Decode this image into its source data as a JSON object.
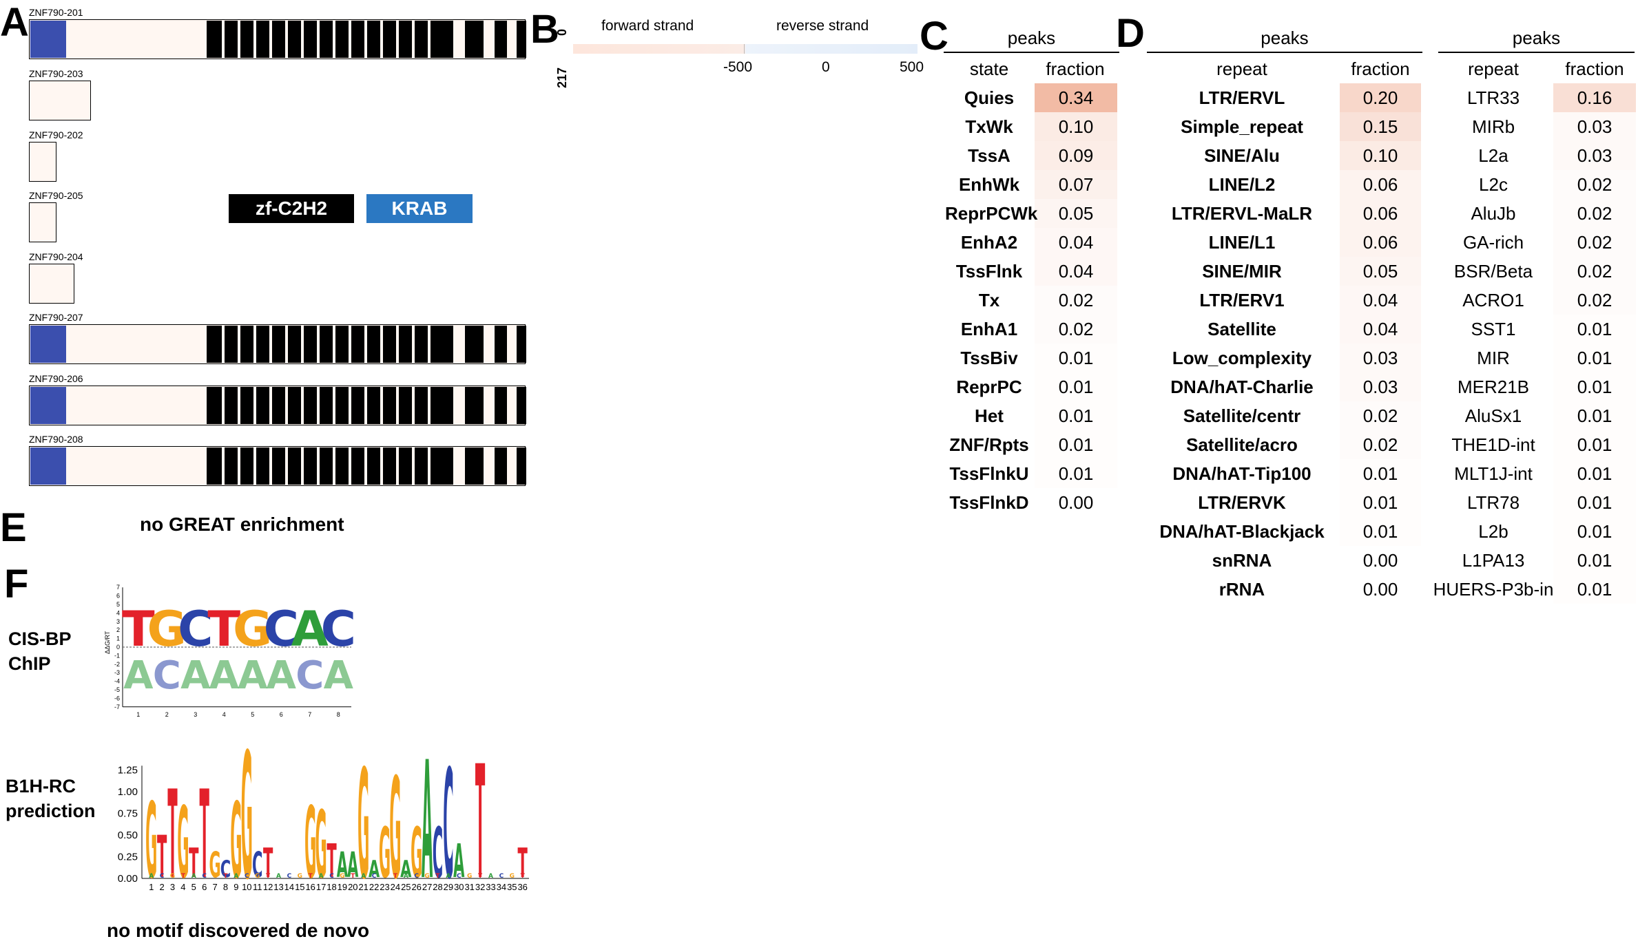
{
  "panels": {
    "A": "A",
    "B": "B",
    "C": "C",
    "D": "D",
    "E": "E",
    "F": "F"
  },
  "panel_a": {
    "transcripts": [
      {
        "name": "ZNF790-201",
        "krab": true,
        "zf": true
      },
      {
        "name": "ZNF790-203",
        "krab": false,
        "zf": false
      },
      {
        "name": "ZNF790-202",
        "krab": false,
        "zf": false
      },
      {
        "name": "ZNF790-205",
        "krab": false,
        "zf": false
      },
      {
        "name": "ZNF790-204",
        "krab": false,
        "zf": false
      },
      {
        "name": "ZNF790-207",
        "krab": true,
        "zf": true
      },
      {
        "name": "ZNF790-206",
        "krab": true,
        "zf": true
      },
      {
        "name": "ZNF790-208",
        "krab": true,
        "zf": true
      }
    ],
    "legend": {
      "zf_label": "zf-C2H2",
      "zf_color": "#000000",
      "krab_label": "KRAB",
      "krab_color": "#2b78c2"
    },
    "domain_colors": {
      "krab": "#3b4fae",
      "zf": "#000000",
      "track": "#fff7f2"
    }
  },
  "panel_b": {
    "forward_label": "forward strand",
    "reverse_label": "reverse strand",
    "y_top": "0",
    "y_bottom": "217",
    "x_ticks": [
      "-500",
      "0",
      "500"
    ]
  },
  "panel_c": {
    "header": "peaks",
    "col_state": "state",
    "col_fraction": "fraction",
    "rows": [
      {
        "state": "Quies",
        "fraction": "0.34"
      },
      {
        "state": "TxWk",
        "fraction": "0.10"
      },
      {
        "state": "TssA",
        "fraction": "0.09"
      },
      {
        "state": "EnhWk",
        "fraction": "0.07"
      },
      {
        "state": "ReprPCWk",
        "fraction": "0.05"
      },
      {
        "state": "EnhA2",
        "fraction": "0.04"
      },
      {
        "state": "TssFlnk",
        "fraction": "0.04"
      },
      {
        "state": "Tx",
        "fraction": "0.02"
      },
      {
        "state": "EnhA1",
        "fraction": "0.02"
      },
      {
        "state": "TssBiv",
        "fraction": "0.01"
      },
      {
        "state": "ReprPC",
        "fraction": "0.01"
      },
      {
        "state": "Het",
        "fraction": "0.01"
      },
      {
        "state": "ZNF/Rpts",
        "fraction": "0.01"
      },
      {
        "state": "TssFlnkU",
        "fraction": "0.01"
      },
      {
        "state": "TssFlnkD",
        "fraction": "0.00"
      }
    ]
  },
  "panel_d_left": {
    "header": "peaks",
    "col_repeat": "repeat",
    "col_fraction": "fraction",
    "rows": [
      {
        "repeat": "LTR/ERVL",
        "fraction": "0.20"
      },
      {
        "repeat": "Simple_repeat",
        "fraction": "0.15"
      },
      {
        "repeat": "SINE/Alu",
        "fraction": "0.10"
      },
      {
        "repeat": "LINE/L2",
        "fraction": "0.06"
      },
      {
        "repeat": "LTR/ERVL-MaLR",
        "fraction": "0.06"
      },
      {
        "repeat": "LINE/L1",
        "fraction": "0.06"
      },
      {
        "repeat": "SINE/MIR",
        "fraction": "0.05"
      },
      {
        "repeat": "LTR/ERV1",
        "fraction": "0.04"
      },
      {
        "repeat": "Satellite",
        "fraction": "0.04"
      },
      {
        "repeat": "Low_complexity",
        "fraction": "0.03"
      },
      {
        "repeat": "DNA/hAT-Charlie",
        "fraction": "0.03"
      },
      {
        "repeat": "Satellite/centr",
        "fraction": "0.02"
      },
      {
        "repeat": "Satellite/acro",
        "fraction": "0.02"
      },
      {
        "repeat": "DNA/hAT-Tip100",
        "fraction": "0.01"
      },
      {
        "repeat": "LTR/ERVK",
        "fraction": "0.01"
      },
      {
        "repeat": "DNA/hAT-Blackjack",
        "fraction": "0.01"
      },
      {
        "repeat": "snRNA",
        "fraction": "0.00"
      },
      {
        "repeat": "rRNA",
        "fraction": "0.00"
      }
    ]
  },
  "panel_d_right": {
    "header": "peaks",
    "col_repeat": "repeat",
    "col_fraction": "fraction",
    "rows": [
      {
        "repeat": "LTR33",
        "fraction": "0.16"
      },
      {
        "repeat": "MIRb",
        "fraction": "0.03"
      },
      {
        "repeat": "L2a",
        "fraction": "0.03"
      },
      {
        "repeat": "L2c",
        "fraction": "0.02"
      },
      {
        "repeat": "AluJb",
        "fraction": "0.02"
      },
      {
        "repeat": "GA-rich",
        "fraction": "0.02"
      },
      {
        "repeat": "BSR/Beta",
        "fraction": "0.02"
      },
      {
        "repeat": "ACRO1",
        "fraction": "0.02"
      },
      {
        "repeat": "SST1",
        "fraction": "0.01"
      },
      {
        "repeat": "MIR",
        "fraction": "0.01"
      },
      {
        "repeat": "MER21B",
        "fraction": "0.01"
      },
      {
        "repeat": "AluSx1",
        "fraction": "0.01"
      },
      {
        "repeat": "THE1D-int",
        "fraction": "0.01"
      },
      {
        "repeat": "MLT1J-int",
        "fraction": "0.01"
      },
      {
        "repeat": "LTR78",
        "fraction": "0.01"
      },
      {
        "repeat": "L2b",
        "fraction": "0.01"
      },
      {
        "repeat": "L1PA13",
        "fraction": "0.01"
      },
      {
        "repeat": "HUERS-P3b-in",
        "fraction": "0.01"
      }
    ]
  },
  "heat_color": "#e8825a",
  "panel_e": {
    "note": "no GREAT enrichment"
  },
  "panel_f": {
    "cisbp_label_1": "CIS-BP",
    "cisbp_label_2": "ChIP",
    "cisbp_ylabel": "ΔΔG/RT",
    "cisbp_yticks": [
      "7",
      "6",
      "5",
      "4",
      "3",
      "2",
      "1",
      "0",
      "-1",
      "-2",
      "-3",
      "-4",
      "-5",
      "-6",
      "-7"
    ],
    "cisbp_xticks": [
      "1",
      "2",
      "3",
      "4",
      "5",
      "6",
      "7",
      "8"
    ],
    "cisbp_top": [
      "T",
      "G",
      "C",
      "T",
      "G",
      "C",
      "A",
      "C"
    ],
    "cisbp_bottom": [
      "A",
      "C",
      "A",
      "A",
      "A",
      "A",
      "C",
      "A"
    ],
    "b1h_label_1": "B1H-RC",
    "b1h_label_2": "prediction",
    "b1h_yticks": [
      "1.25",
      "1.00",
      "0.75",
      "0.50",
      "0.25",
      "0.00"
    ],
    "b1h_xticks": [
      "1",
      "2",
      "3",
      "4",
      "5",
      "6",
      "7",
      "8",
      "9",
      "10",
      "11",
      "12",
      "13",
      "14",
      "15",
      "16",
      "17",
      "18",
      "19",
      "20",
      "21",
      "22",
      "23",
      "24",
      "25",
      "26",
      "27",
      "28",
      "29",
      "30",
      "31",
      "32",
      "33",
      "34",
      "35",
      "36"
    ],
    "b1h_letters": [
      {
        "pos": 1,
        "l": "G",
        "h": 0.9
      },
      {
        "pos": 2,
        "l": "T",
        "h": 0.5
      },
      {
        "pos": 3,
        "l": "T",
        "h": 1.05
      },
      {
        "pos": 4,
        "l": "G",
        "h": 0.85
      },
      {
        "pos": 5,
        "l": "T",
        "h": 0.35
      },
      {
        "pos": 6,
        "l": "T",
        "h": 1.05
      },
      {
        "pos": 7,
        "l": "G",
        "h": 0.3
      },
      {
        "pos": 8,
        "l": "C",
        "h": 0.2
      },
      {
        "pos": 9,
        "l": "G",
        "h": 0.9
      },
      {
        "pos": 10,
        "l": "G",
        "h": 1.5
      },
      {
        "pos": 11,
        "l": "C",
        "h": 0.3
      },
      {
        "pos": 12,
        "l": "T",
        "h": 0.35
      },
      {
        "pos": 16,
        "l": "G",
        "h": 0.85
      },
      {
        "pos": 17,
        "l": "G",
        "h": 0.8
      },
      {
        "pos": 18,
        "l": "T",
        "h": 0.4
      },
      {
        "pos": 19,
        "l": "A",
        "h": 0.3
      },
      {
        "pos": 20,
        "l": "A",
        "h": 0.3
      },
      {
        "pos": 21,
        "l": "G",
        "h": 1.3
      },
      {
        "pos": 22,
        "l": "A",
        "h": 0.2
      },
      {
        "pos": 23,
        "l": "G",
        "h": 0.6
      },
      {
        "pos": 24,
        "l": "G",
        "h": 1.2
      },
      {
        "pos": 25,
        "l": "A",
        "h": 0.2
      },
      {
        "pos": 26,
        "l": "G",
        "h": 0.6
      },
      {
        "pos": 27,
        "l": "A",
        "h": 1.4
      },
      {
        "pos": 28,
        "l": "C",
        "h": 0.6
      },
      {
        "pos": 29,
        "l": "C",
        "h": 1.3
      },
      {
        "pos": 30,
        "l": "A",
        "h": 0.4
      },
      {
        "pos": 32,
        "l": "T",
        "h": 1.35
      },
      {
        "pos": 36,
        "l": "T",
        "h": 0.35
      }
    ],
    "base_colors": {
      "A": "#2e9d3a",
      "C": "#2b43a8",
      "G": "#f4a21b",
      "T": "#e3212a"
    },
    "note": "no motif discovered de novo"
  }
}
